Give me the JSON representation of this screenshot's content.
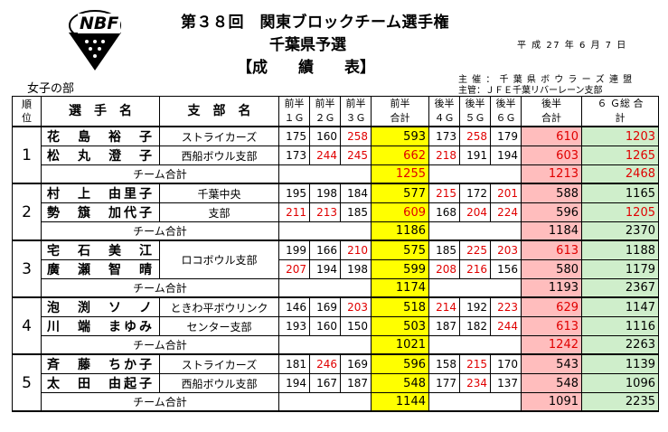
{
  "logo": {
    "text": "NBF"
  },
  "header": {
    "title": "第３８回　関東ブロックチーム選手権",
    "subtitle": "千葉県予選",
    "doc_type": "【成　　績　　表】",
    "date": "平 成 27 年 6 月 7 日",
    "organizer": "主 催 ： 千 葉 県 ボ ウ ラ ー ズ 連 盟",
    "manager": "主管：ＪＦＥ千葉リバーレーン支部",
    "division": "女子の部"
  },
  "columns": {
    "rank": "順位",
    "player": "選　手　名",
    "branch": "支　部　名",
    "g1": "前半１Ｇ",
    "g2": "前半２Ｇ",
    "g3": "前半３Ｇ",
    "first_total": "前半合計",
    "g4": "後半４Ｇ",
    "g5": "後半５Ｇ",
    "g6": "後半６Ｇ",
    "second_total": "後半合計",
    "grand_total": "６ Ｇ総 合 計"
  },
  "team_total_label": "チーム合計",
  "colors": {
    "red": "#e00000",
    "yellow": "#ffff00",
    "pink": "#ffbdbd",
    "green": "#cfeecb"
  },
  "teams": [
    {
      "rank": "1",
      "players": [
        {
          "name": "花　島　裕　子",
          "branch": "ストライカーズ",
          "g1": "175",
          "g2": "160",
          "g3": "258",
          "first": "593",
          "g4": "173",
          "g5": "258",
          "g6": "179",
          "second": "610",
          "total": "1203"
        },
        {
          "name": "松　丸　澄　子",
          "branch": "西船ボウル支部",
          "g1": "173",
          "g2": "244",
          "g3": "245",
          "first": "662",
          "g4": "218",
          "g5": "191",
          "g6": "194",
          "second": "603",
          "total": "1265"
        }
      ],
      "team_first": "1255",
      "team_second": "1213",
      "team_total": "2468"
    },
    {
      "rank": "2",
      "players": [
        {
          "name": "村　上　由里子",
          "branch": "千葉中央",
          "g1": "195",
          "g2": "198",
          "g3": "184",
          "first": "577",
          "g4": "215",
          "g5": "172",
          "g6": "201",
          "second": "588",
          "total": "1165"
        },
        {
          "name": "勢　簱　加代子",
          "branch": "支部",
          "g1": "211",
          "g2": "213",
          "g3": "185",
          "first": "609",
          "g4": "168",
          "g5": "204",
          "g6": "224",
          "second": "596",
          "total": "1205"
        }
      ],
      "team_first": "1186",
      "team_second": "1184",
      "team_total": "2370"
    },
    {
      "rank": "3",
      "branch_merged": "ロコボウル支部",
      "players": [
        {
          "name": "宅　石　美　江",
          "g1": "199",
          "g2": "166",
          "g3": "210",
          "first": "575",
          "g4": "185",
          "g5": "225",
          "g6": "203",
          "second": "613",
          "total": "1188"
        },
        {
          "name": "廣　瀬　智　晴",
          "g1": "207",
          "g2": "194",
          "g3": "198",
          "first": "599",
          "g4": "208",
          "g5": "216",
          "g6": "156",
          "second": "580",
          "total": "1179"
        }
      ],
      "team_first": "1174",
      "team_second": "1193",
      "team_total": "2367"
    },
    {
      "rank": "4",
      "players": [
        {
          "name": "泡　渕　ソ　ノ",
          "branch": "ときわ平ボウリンク",
          "g1": "146",
          "g2": "169",
          "g3": "203",
          "first": "518",
          "g4": "214",
          "g5": "192",
          "g6": "223",
          "second": "629",
          "total": "1147"
        },
        {
          "name": "川　端　まゆみ",
          "branch": "センター支部",
          "g1": "193",
          "g2": "160",
          "g3": "150",
          "first": "503",
          "g4": "187",
          "g5": "182",
          "g6": "244",
          "second": "613",
          "total": "1116"
        }
      ],
      "team_first": "1021",
      "team_second": "1242",
      "team_total": "2263"
    },
    {
      "rank": "5",
      "players": [
        {
          "name": "斉　藤　ちか子",
          "branch": "ストライカーズ",
          "g1": "181",
          "g2": "246",
          "g3": "169",
          "first": "596",
          "g4": "158",
          "g5": "215",
          "g6": "170",
          "second": "543",
          "total": "1139"
        },
        {
          "name": "太　田　由起子",
          "branch": "西船ボウル支部",
          "g1": "194",
          "g2": "167",
          "g3": "187",
          "first": "548",
          "g4": "177",
          "g5": "234",
          "g6": "137",
          "second": "548",
          "total": "1096"
        }
      ],
      "team_first": "1144",
      "team_second": "1091",
      "team_total": "2235"
    }
  ]
}
